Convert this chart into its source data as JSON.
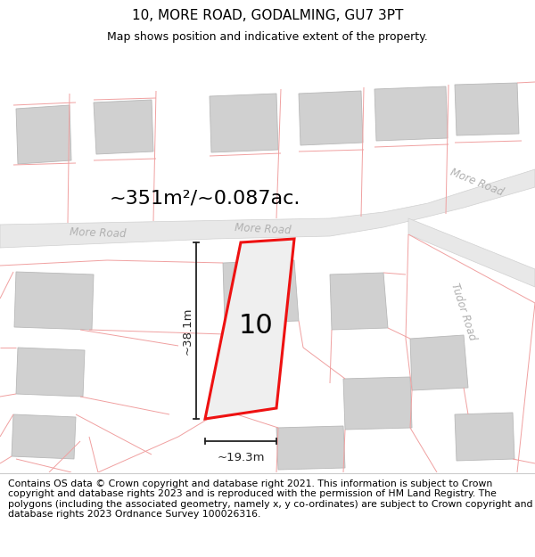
{
  "title": "10, MORE ROAD, GODALMING, GU7 3PT",
  "subtitle": "Map shows position and indicative extent of the property.",
  "area_label": "~351m²/~0.087ac.",
  "width_label": "~19.3m",
  "height_label": "~38.1m",
  "plot_number": "10",
  "road_label_left": "More Road",
  "road_label_center": "More Road",
  "road_label_topright": "More Road",
  "tudor_road_label": "Tudor Road",
  "footer_text": "Contains OS data © Crown copyright and database right 2021. This information is subject to Crown copyright and database rights 2023 and is reproduced with the permission of HM Land Registry. The polygons (including the associated geometry, namely x, y co-ordinates) are subject to Crown copyright and database rights 2023 Ordnance Survey 100026316.",
  "map_bg": "#ffffff",
  "road_fill": "#e8e8e8",
  "road_edge": "#d0d0d0",
  "building_fill": "#d0d0d0",
  "building_edge": "#b8b8b8",
  "plot_fill": "#e8e8e8",
  "plot_stroke": "#ee1111",
  "pink_line": "#f0a0a0",
  "road_text_color": "#b0b0b0",
  "dim_color": "#222222",
  "title_fs": 11,
  "subtitle_fs": 9,
  "footer_fs": 7.8,
  "area_fs": 16,
  "plot_num_fs": 22,
  "road_lbl_fs": 8.5,
  "dim_fs": 9.5
}
